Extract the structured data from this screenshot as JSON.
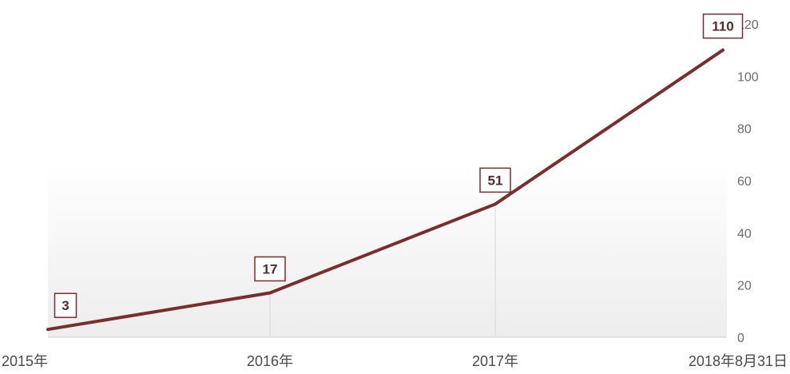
{
  "chart_data": {
    "type": "line",
    "title": "",
    "xlabel": "",
    "ylabel": "",
    "categories": [
      "2015年",
      "2016年",
      "2017年",
      "2018年8月31日"
    ],
    "series": [
      {
        "values": [
          3,
          17,
          51,
          110
        ]
      }
    ],
    "data_labels": [
      "3",
      "17",
      "51",
      "110"
    ],
    "ylim": [
      0,
      120
    ],
    "y_ticks": [
      0,
      20,
      40,
      60,
      80,
      100,
      120
    ],
    "y_tick_labels": [
      "0",
      "20",
      "40",
      "60",
      "80",
      "100",
      "120"
    ],
    "y_axis_side": "right",
    "legend": "none",
    "grid": false,
    "colors": {
      "line": "#7b2d2d",
      "label_border": "#7b2d2d",
      "label_text": "#5a2a2a",
      "axis_text": "#6b6b6b",
      "drop_line": "#dcdcdc",
      "area_fill_top": "#ffffff",
      "area_fill_bottom": "#ededed"
    }
  }
}
